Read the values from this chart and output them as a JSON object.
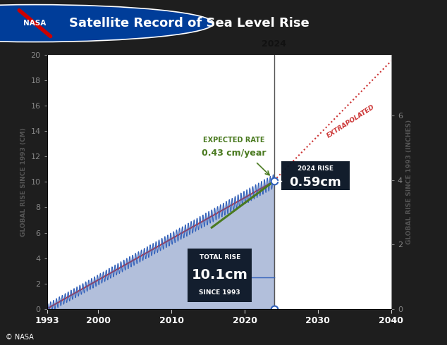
{
  "title": "Satellite Record of Sea Level Rise",
  "ylabel_left": "GLOBAL RISE SINCE 1993 (CM)",
  "ylabel_right": "GLOBAL RISE SINCE 1993 (INCHES)",
  "xlim": [
    1993,
    2040
  ],
  "ylim_cm": [
    0,
    20
  ],
  "ylim_inches_max": 7.874,
  "yticks_cm": [
    0,
    2,
    4,
    6,
    8,
    10,
    12,
    14,
    16,
    18,
    20
  ],
  "yticks_inches": [
    0,
    2,
    4,
    6
  ],
  "xticks": [
    1993,
    2000,
    2010,
    2020,
    2030,
    2040
  ],
  "data_start_year": 1993,
  "data_end_year": 2024,
  "trend_rate_cm_per_year": 0.3246,
  "total_rise_2024_cm": 10.1,
  "actual_rate_2024_cm": 0.59,
  "expected_rate_cm_per_year": 0.43,
  "expected_rate_label": "EXPECTED RATE",
  "expected_rate_value": "0.43 cm/year",
  "total_rise_label": "TOTAL RISE",
  "total_rise_value": "10.1cm",
  "total_rise_sublabel": "SINCE 1993",
  "rise_2024_label": "2024 RISE",
  "rise_2024_value": "0.59cm",
  "year_marker": 2024,
  "extrapolated_label": "EXTRAPOLATED",
  "bg_color": "#1e1e1e",
  "plot_bg_color": "#ffffff",
  "header_bg_color": "#111122",
  "trend_color": "#cc3333",
  "data_line_color": "#3060bb",
  "data_fill_color": "#99aad0",
  "expected_line_color": "#4a7a20",
  "annotation_box_color": "#0a1525",
  "annotation_text_color": "#ffffff",
  "year2024_line_color": "#555555",
  "oscillation_amplitude": 0.38,
  "oscillation_frequency": 2.5,
  "nasa_credit": "© NASA"
}
